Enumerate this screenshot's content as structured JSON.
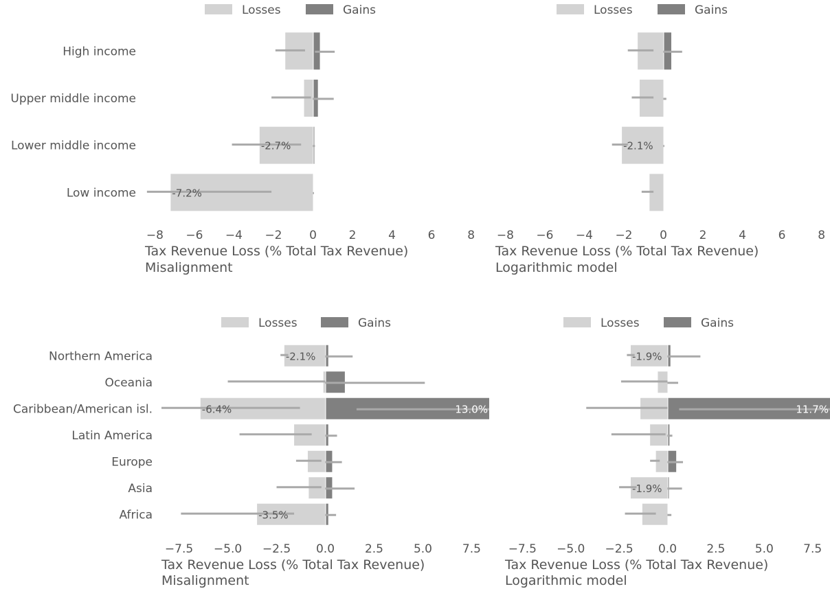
{
  "colors": {
    "losses": "#d3d3d3",
    "gains": "#808080",
    "errorbar": "#a9a9a9",
    "text": "#555555",
    "label_on_dark": "#ffffff"
  },
  "legend": {
    "losses_label": "Losses",
    "gains_label": "Gains",
    "placement": "top-center"
  },
  "chart_data": [
    {
      "type": "bar",
      "orientation": "horizontal",
      "categories": [
        "High income",
        "Upper middle income",
        "Lower middle income",
        "Low income"
      ],
      "series": [
        {
          "name": "Losses",
          "values": [
            -1.4,
            -0.45,
            -2.7,
            -7.2
          ],
          "error_low": [
            -1.9,
            -2.1,
            -4.1,
            -8.4
          ],
          "error_high": [
            -0.4,
            -0.1,
            -0.6,
            -2.1
          ]
        },
        {
          "name": "Gains",
          "values": [
            0.35,
            0.25,
            0.02,
            0.0
          ],
          "error_low": [
            0.1,
            0.0,
            0.0,
            0.0
          ],
          "error_high": [
            1.1,
            1.05,
            0.1,
            0.05
          ]
        }
      ],
      "data_labels": [
        {
          "category": "Lower middle income",
          "series": "Losses",
          "text": "-2.7%"
        },
        {
          "category": "Low income",
          "series": "Losses",
          "text": "-7.2%"
        }
      ],
      "xlabel": "Tax Revenue Loss (% Total Tax Revenue)",
      "subtitle": "Misalignment",
      "xlim": [
        -8.5,
        8.5
      ],
      "xticks": [
        -8,
        -6,
        -4,
        -2,
        0,
        2,
        4,
        6,
        8
      ],
      "xtick_labels": [
        "−8",
        "−6",
        "−4",
        "−2",
        "0",
        "2",
        "4",
        "6",
        "8"
      ],
      "show_category_labels": true,
      "grid": false
    },
    {
      "type": "bar",
      "orientation": "horizontal",
      "categories": [
        "High income",
        "Upper middle income",
        "Lower middle income",
        "Low income"
      ],
      "series": [
        {
          "name": "Losses",
          "values": [
            -1.3,
            -1.2,
            -2.1,
            -0.7
          ],
          "error_low": [
            -1.8,
            -1.6,
            -2.6,
            -1.1
          ],
          "error_high": [
            -0.5,
            -0.5,
            -1.8,
            -0.5
          ]
        },
        {
          "name": "Gains",
          "values": [
            0.4,
            0.0,
            0.0,
            0.0
          ],
          "error_low": [
            0.0,
            0.0,
            0.0,
            0.0
          ],
          "error_high": [
            0.95,
            0.15,
            0.05,
            0.0
          ]
        }
      ],
      "data_labels": [
        {
          "category": "Lower middle income",
          "series": "Losses",
          "text": "-2.1%"
        }
      ],
      "xlabel": "Tax Revenue Loss (% Total Tax Revenue)",
      "subtitle": "Logarithmic model",
      "xlim": [
        -8.5,
        8.5
      ],
      "xticks": [
        -8,
        -6,
        -4,
        -2,
        0,
        2,
        4,
        6,
        8
      ],
      "xtick_labels": [
        "−8",
        "−6",
        "−4",
        "−2",
        "0",
        "2",
        "4",
        "6",
        "8"
      ],
      "show_category_labels": false,
      "grid": false
    },
    {
      "type": "bar",
      "orientation": "horizontal",
      "categories": [
        "Northern America",
        "Oceania",
        "Caribbean/American isl.",
        "Latin America",
        "Europe",
        "Asia",
        "Africa"
      ],
      "series": [
        {
          "name": "Losses",
          "values": [
            -2.1,
            -0.1,
            -6.4,
            -1.6,
            -0.9,
            -0.85,
            -3.5
          ],
          "error_low": [
            -2.3,
            -5.0,
            -8.4,
            -4.4,
            -1.5,
            -2.5,
            -7.4
          ],
          "error_high": [
            -1.9,
            0.0,
            -1.3,
            -0.7,
            -0.2,
            -0.2,
            -1.6
          ]
        },
        {
          "name": "Gains",
          "values": [
            0.15,
            1.0,
            8.4,
            0.15,
            0.35,
            0.35,
            0.15
          ],
          "error_low": [
            0.0,
            0.0,
            1.6,
            0.0,
            0.0,
            0.0,
            0.0
          ],
          "error_high": [
            1.4,
            5.1,
            8.4,
            0.6,
            0.85,
            1.5,
            0.55
          ]
        }
      ],
      "data_labels": [
        {
          "category": "Northern America",
          "series": "Losses",
          "text": "-2.1%"
        },
        {
          "category": "Caribbean/American isl.",
          "series": "Losses",
          "text": "-6.4%"
        },
        {
          "category": "Caribbean/American isl.",
          "series": "Gains",
          "text": "13.0%"
        },
        {
          "category": "Africa",
          "series": "Losses",
          "text": "-3.5%"
        }
      ],
      "xlabel": "Tax Revenue Loss (% Total Tax Revenue)",
      "subtitle": "Misalignment",
      "xlim": [
        -8.4,
        8.4
      ],
      "xticks": [
        -7.5,
        -5.0,
        -2.5,
        0.0,
        2.5,
        5.0,
        7.5
      ],
      "xtick_labels": [
        "−7.5",
        "−5.0",
        "−2.5",
        "0.0",
        "2.5",
        "5.0",
        "7.5"
      ],
      "show_category_labels": true,
      "grid": false
    },
    {
      "type": "bar",
      "orientation": "horizontal",
      "categories": [
        "Northern America",
        "Oceania",
        "Caribbean/American isl.",
        "Latin America",
        "Europe",
        "Asia",
        "Africa"
      ],
      "series": [
        {
          "name": "Losses",
          "values": [
            -1.9,
            -0.5,
            -1.4,
            -0.9,
            -0.6,
            -1.9,
            -1.3
          ],
          "error_low": [
            -2.1,
            -2.4,
            -4.2,
            -2.9,
            -0.9,
            -2.5,
            -2.2
          ],
          "error_high": [
            -1.7,
            0.0,
            0.0,
            -0.1,
            -0.4,
            -1.6,
            -0.6
          ]
        },
        {
          "name": "Gains",
          "values": [
            0.15,
            0.0,
            8.4,
            0.1,
            0.45,
            0.05,
            0.0
          ],
          "error_low": [
            0.0,
            0.0,
            0.6,
            0.0,
            0.0,
            0.0,
            0.0
          ],
          "error_high": [
            1.7,
            0.55,
            8.4,
            0.25,
            0.8,
            0.75,
            0.2
          ]
        }
      ],
      "data_labels": [
        {
          "category": "Northern America",
          "series": "Losses",
          "text": "-1.9%"
        },
        {
          "category": "Caribbean/American isl.",
          "series": "Gains",
          "text": "11.7%"
        },
        {
          "category": "Asia",
          "series": "Losses",
          "text": "-1.9%"
        }
      ],
      "xlabel": "Tax Revenue Loss (% Total Tax Revenue)",
      "subtitle": "Logarithmic model",
      "xlim": [
        -8.4,
        8.4
      ],
      "xticks": [
        -7.5,
        -5.0,
        -2.5,
        0.0,
        2.5,
        5.0,
        7.5
      ],
      "xtick_labels": [
        "−7.5",
        "−5.0",
        "−2.5",
        "0.0",
        "2.5",
        "5.0",
        "7.5"
      ],
      "show_category_labels": false,
      "grid": false
    }
  ]
}
